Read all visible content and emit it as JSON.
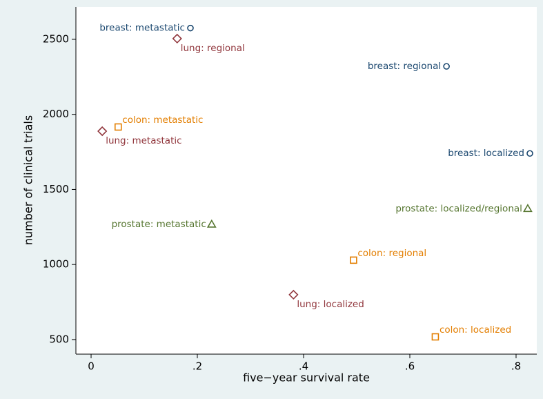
{
  "chart_data": {
    "type": "scatter",
    "x_label": "five−year survival rate",
    "y_label": "number of clinical trials",
    "xlim": [
      -0.0286,
      0.839
    ],
    "ylim": [
      403,
      2716
    ],
    "xticks": [
      0,
      {
        "value": 0.2,
        "label": ".2"
      },
      {
        "value": 0.4,
        "label": ".4"
      },
      {
        "value": 0.6,
        "label": ".6"
      },
      {
        "value": 0.8,
        "label": ".8"
      }
    ],
    "yticks": [
      500,
      1000,
      1500,
      2000,
      2500
    ],
    "grid": false,
    "series": [
      {
        "marker": "circle",
        "color": "#1a476f",
        "x": [
          0.187,
          0.669,
          0.826
        ],
        "values": [
          2575,
          2320,
          1740
        ],
        "labels": [
          "breast: metastatic",
          "breast: regional",
          "breast: localized"
        ]
      },
      {
        "marker": "diamond",
        "color": "#90353b",
        "x": [
          0.162,
          0.021,
          0.381
        ],
        "values": [
          2505,
          1888,
          799
        ],
        "labels": [
          "lung: regional",
          "lung: metastatic",
          "lung: localized"
        ]
      },
      {
        "marker": "square",
        "color": "#e37e00",
        "x": [
          0.051,
          0.494,
          0.648
        ],
        "values": [
          1916,
          1029,
          518
        ],
        "labels": [
          "colon: metastatic",
          "colon: regional",
          "colon: localized"
        ]
      },
      {
        "marker": "triangle",
        "color": "#55752f",
        "x": [
          0.227,
          0.822
        ],
        "values": [
          1268,
          1372
        ],
        "labels": [
          "prostate: metastatic",
          "prostate: localized/regional"
        ]
      }
    ]
  }
}
